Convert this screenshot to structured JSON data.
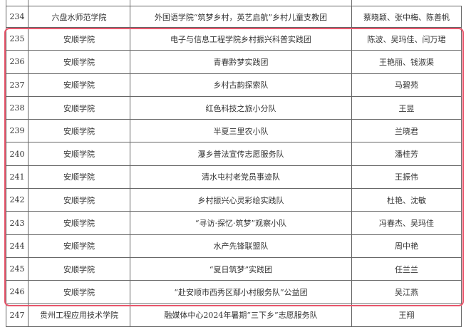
{
  "highlight_color": "#e8566c",
  "rows": [
    {
      "no": "234",
      "school": "六盘水师范学院",
      "team": "外国语学院“筑梦乡村，英艺启航”乡村儿童支教团",
      "leader": "蔡晓颖、张中梅、陈善帆"
    },
    {
      "no": "235",
      "school": "安顺学院",
      "team": "电子与信息工程学院乡村振兴科普实践团",
      "leader": "陈波、吴玛佳、闫万珺"
    },
    {
      "no": "236",
      "school": "安顺学院",
      "team": "青春黔梦实践团",
      "leader": "王艳丽、钱淑渠"
    },
    {
      "no": "237",
      "school": "安顺学院",
      "team": "乡村古韵探索队",
      "leader": "马碧苑"
    },
    {
      "no": "238",
      "school": "安顺学院",
      "team": "红色科技之旅小分队",
      "leader": "王昱"
    },
    {
      "no": "239",
      "school": "安顺学院",
      "team": "半夏三里农小队",
      "leader": "兰晓君"
    },
    {
      "no": "240",
      "school": "安顺学院",
      "team": "瀑乡普法宣传志愿服务队",
      "leader": "潘桂芳"
    },
    {
      "no": "241",
      "school": "安顺学院",
      "team": "清水屯村老党员事迹队",
      "leader": "王振伟"
    },
    {
      "no": "242",
      "school": "安顺学院",
      "team": "乡村振兴心灵彩绘实践队",
      "leader": "杜艳、沈敏"
    },
    {
      "no": "243",
      "school": "安顺学院",
      "team": "“寻访·探忆·筑梦”观察小队",
      "leader": "冯春杰、吴玛佳"
    },
    {
      "no": "244",
      "school": "安顺学院",
      "team": "水产先锋联盟队",
      "leader": "周中艳"
    },
    {
      "no": "245",
      "school": "安顺学院",
      "team": "“夏日筑梦”实践团",
      "leader": "任兰兰"
    },
    {
      "no": "246",
      "school": "安顺学院",
      "team": "“赴安顺市西秀区鄢小村服务队”公益团",
      "leader": "吴江燕"
    },
    {
      "no": "247",
      "school": "贵州工程应用技术学院",
      "team": "融媒体中心2024年暑期“三下乡”志愿服务队",
      "leader": "王翔"
    }
  ]
}
